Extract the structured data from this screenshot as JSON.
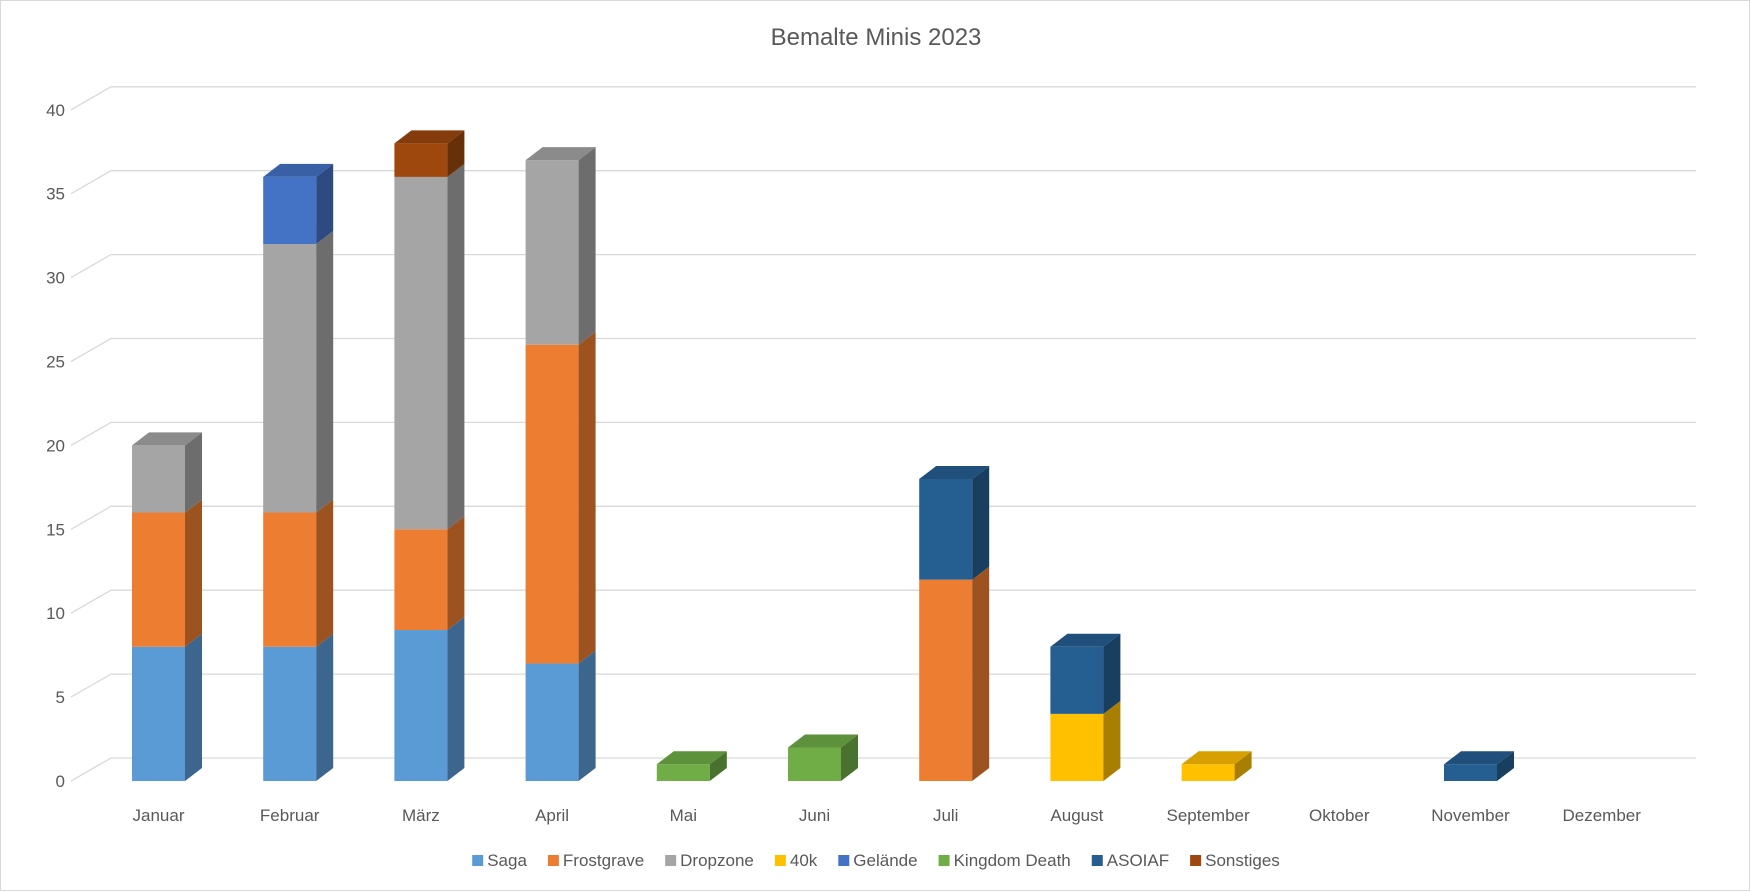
{
  "chart_data": {
    "type": "bar",
    "stacked": true,
    "three_d": true,
    "title": "Bemalte Minis 2023",
    "xlabel": "",
    "ylabel": "",
    "ylim": [
      0,
      40
    ],
    "y_ticks": [
      0,
      5,
      10,
      15,
      20,
      25,
      30,
      35,
      40
    ],
    "grid": true,
    "legend_position": "bottom",
    "categories": [
      "Januar",
      "Februar",
      "März",
      "April",
      "Mai",
      "Juni",
      "Juli",
      "August",
      "September",
      "Oktober",
      "November",
      "Dezember"
    ],
    "series": [
      {
        "name": "Saga",
        "color": "#5b9bd5",
        "values": [
          8,
          8,
          9,
          7,
          0,
          0,
          0,
          0,
          0,
          0,
          0,
          0
        ]
      },
      {
        "name": "Frostgrave",
        "color": "#ed7d31",
        "values": [
          8,
          8,
          6,
          19,
          0,
          0,
          12,
          0,
          0,
          0,
          0,
          0
        ]
      },
      {
        "name": "Dropzone",
        "color": "#a5a5a5",
        "values": [
          4,
          16,
          21,
          11,
          0,
          0,
          0,
          0,
          0,
          0,
          0,
          0
        ]
      },
      {
        "name": "40k",
        "color": "#ffc000",
        "values": [
          0,
          0,
          0,
          0,
          0,
          0,
          0,
          4,
          1,
          0,
          0,
          0
        ]
      },
      {
        "name": "Gelände",
        "color": "#4472c4",
        "values": [
          0,
          4,
          0,
          0,
          0,
          0,
          0,
          0,
          0,
          0,
          0,
          0
        ]
      },
      {
        "name": "Kingdom Death",
        "color": "#70ad47",
        "values": [
          0,
          0,
          0,
          0,
          1,
          2,
          0,
          0,
          0,
          0,
          0,
          0
        ]
      },
      {
        "name": "ASOIAF",
        "color": "#255e91",
        "values": [
          0,
          0,
          0,
          0,
          0,
          0,
          6,
          4,
          0,
          0,
          1,
          0
        ]
      },
      {
        "name": "Sonstiges",
        "color": "#9e480e",
        "values": [
          0,
          0,
          2,
          0,
          0,
          0,
          0,
          0,
          0,
          0,
          0,
          0
        ]
      }
    ]
  }
}
